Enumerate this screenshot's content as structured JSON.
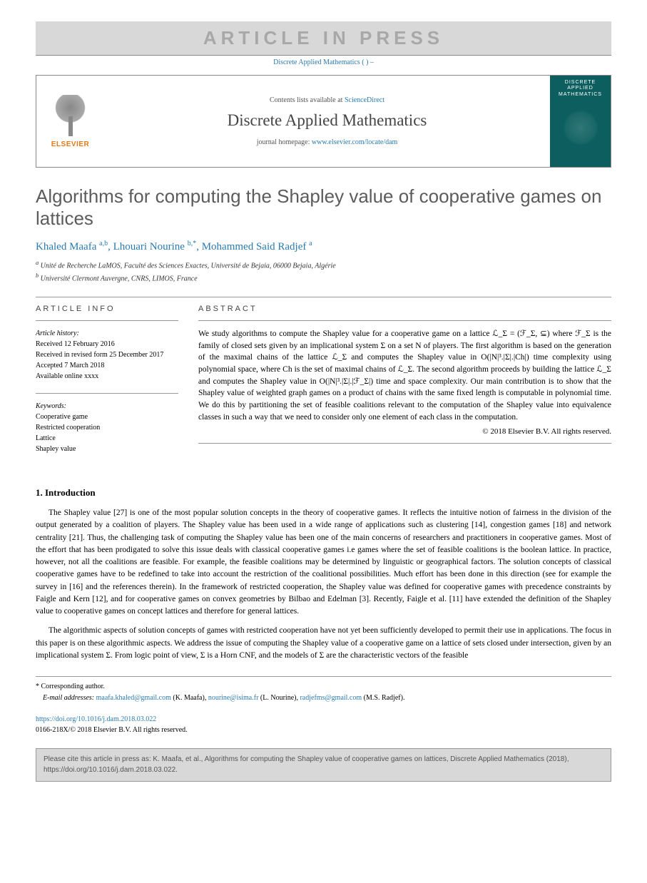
{
  "banner": {
    "text": "ARTICLE IN PRESS",
    "sub_journal": "Discrete Applied Mathematics",
    "sub_ref": "( ) –"
  },
  "header": {
    "publisher": "ELSEVIER",
    "contents_prefix": "Contents lists available at ",
    "contents_link": "ScienceDirect",
    "journal_name": "Discrete Applied Mathematics",
    "homepage_prefix": "journal homepage: ",
    "homepage_link": "www.elsevier.com/locate/dam",
    "cover_title": "DISCRETE APPLIED MATHEMATICS"
  },
  "title": "Algorithms for computing the Shapley value of cooperative games on lattices",
  "authors_html": "Khaled Maafa <sup>a,b</sup>, Lhouari Nourine <sup>b,*</sup>, Mohammed Said Radjef <sup>a</sup>",
  "affiliations": {
    "a": "Unité de Recherche LaMOS, Faculté des Sciences Exactes, Université de Bejaia, 06000 Bejaia, Algérie",
    "b": "Université Clermont Auvergne, CNRS, LIMOS, France"
  },
  "info": {
    "heading": "ARTICLE INFO",
    "history_label": "Article history:",
    "received": "Received 12 February 2016",
    "revised": "Received in revised form 25 December 2017",
    "accepted": "Accepted 7 March 2018",
    "online": "Available online xxxx",
    "keywords_label": "Keywords:",
    "keywords": [
      "Cooperative game",
      "Restricted cooperation",
      "Lattice",
      "Shapley value"
    ]
  },
  "abstract": {
    "heading": "ABSTRACT",
    "text": "We study algorithms to compute the Shapley value for a cooperative game on a lattice ℒ_Σ = (ℱ_Σ, ⊆) where ℱ_Σ is the family of closed sets given by an implicational system Σ on a set N of players. The first algorithm is based on the generation of the maximal chains of the lattice ℒ_Σ and computes the Shapley value in O(|N|³.|Σ|.|Ch|) time complexity using polynomial space, where Ch is the set of maximal chains of ℒ_Σ. The second algorithm proceeds by building the lattice ℒ_Σ and computes the Shapley value in O(|N|³.|Σ|.|ℱ_Σ|) time and space complexity. Our main contribution is to show that the Shapley value of weighted graph games on a product of chains with the same fixed length is computable in polynomial time. We do this by partitioning the set of feasible coalitions relevant to the computation of the Shapley value into equivalence classes in such a way that we need to consider only one element of each class in the computation.",
    "copyright": "© 2018 Elsevier B.V. All rights reserved."
  },
  "sections": {
    "intro_heading": "1. Introduction",
    "intro_p1": "The Shapley value [27] is one of the most popular solution concepts in the theory of cooperative games. It reflects the intuitive notion of fairness in the division of the output generated by a coalition of players. The Shapley value has been used in a wide range of applications such as clustering [14], congestion games [18] and network centrality [21]. Thus, the challenging task of computing the Shapley value has been one of the main concerns of researchers and practitioners in cooperative games. Most of the effort that has been prodigated to solve this issue deals with classical cooperative games i.e games where the set of feasible coalitions is the boolean lattice. In practice, however, not all the coalitions are feasible. For example, the feasible coalitions may be determined by linguistic or geographical factors. The solution concepts of classical cooperative games have to be redefined to take into account the restriction of the coalitional possibilities. Much effort has been done in this direction (see for example the survey in [16] and the references therein). In the framework of restricted cooperation, the Shapley value was defined for cooperative games with precedence constraints by Faigle and Kern [12], and for cooperative games on convex geometries by Bilbao and Edelman [3]. Recently, Faigle et al. [11] have extended the definition of the Shapley value to cooperative games on concept lattices and therefore for general lattices.",
    "intro_p2": "The algorithmic aspects of solution concepts of games with restricted cooperation have not yet been sufficiently developed to permit their use in applications. The focus in this paper is on these algorithmic aspects. We address the issue of computing the Shapley value of a cooperative game on a lattice of sets closed under intersection, given by an implicational system Σ. From logic point of view, Σ is a Horn CNF, and the models of Σ are the characteristic vectors of the feasible"
  },
  "footnotes": {
    "corr_label": "* Corresponding author.",
    "email_label": "E-mail addresses:",
    "emails": [
      {
        "addr": "maafa.khaled@gmail.com",
        "who": "(K. Maafa)"
      },
      {
        "addr": "nourine@isima.fr",
        "who": "(L. Nourine)"
      },
      {
        "addr": "radjefms@gmail.com",
        "who": "(M.S. Radjef)"
      }
    ]
  },
  "doi": {
    "link": "https://doi.org/10.1016/j.dam.2018.03.022",
    "issn_line": "0166-218X/© 2018 Elsevier B.V. All rights reserved."
  },
  "citebox": "Please cite this article in press as: K. Maafa, et al., Algorithms for computing the Shapley value of cooperative games on lattices, Discrete Applied Mathematics (2018), https://doi.org/10.1016/j.dam.2018.03.022.",
  "colors": {
    "link": "#2a7ab0",
    "banner_bg": "#d8d8d8",
    "banner_text": "#a8a8a8",
    "cover_bg": "#0d5f5f",
    "elsevier_orange": "#e67817",
    "title_color": "#5c5c5c"
  }
}
